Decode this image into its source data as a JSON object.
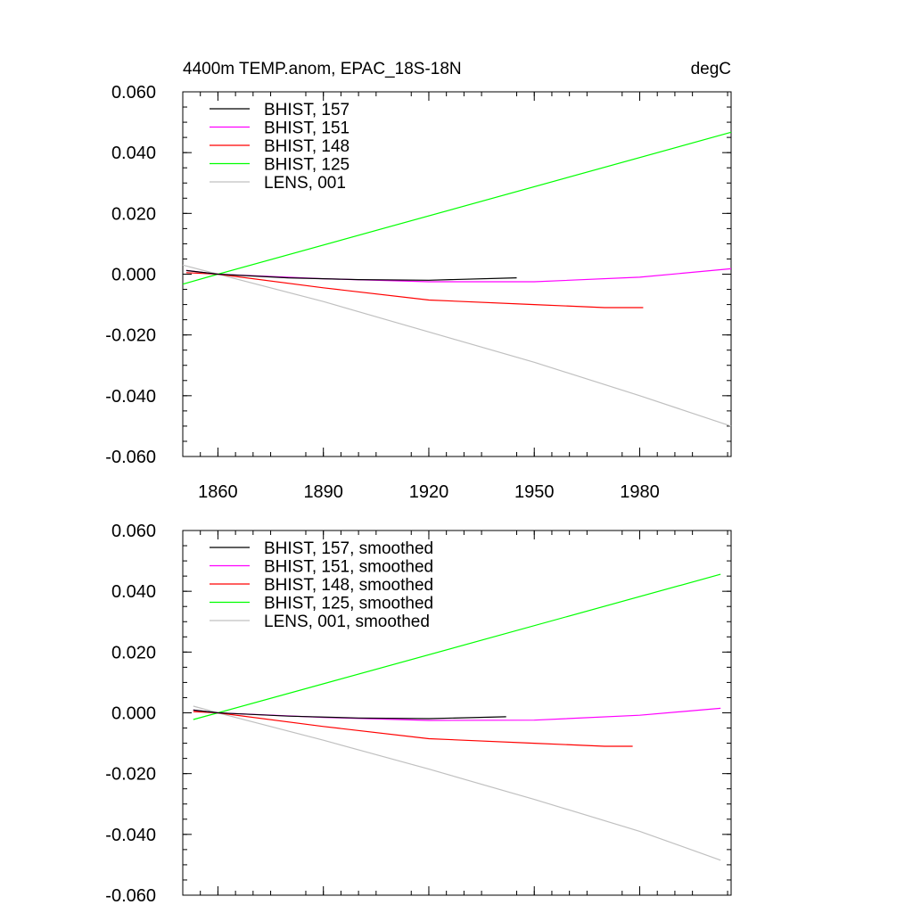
{
  "chart_data": [
    {
      "type": "line",
      "title": "4400m TEMP.anom, EPAC_18S-18N",
      "units": "degC",
      "xlabel": "",
      "ylabel": "",
      "xlim": [
        1850,
        2006
      ],
      "ylim": [
        -0.06,
        0.06
      ],
      "xticks": [
        1860,
        1890,
        1920,
        1950,
        1980
      ],
      "xtick_labels": [
        "1860",
        "1890",
        "1920",
        "1950",
        "1980"
      ],
      "yticks": [
        -0.06,
        -0.04,
        -0.02,
        0.0,
        0.02,
        0.04,
        0.06
      ],
      "ytick_labels": [
        "-0.060",
        "-0.040",
        "-0.020",
        "0.000",
        "0.020",
        "0.040",
        "0.060"
      ],
      "legend_position": "top-left",
      "series": [
        {
          "name": "BHIST, 157",
          "color": "#000000",
          "x": [
            1851,
            1860,
            1880,
            1900,
            1920,
            1945
          ],
          "y": [
            0.0012,
            0.0,
            -0.0012,
            -0.0018,
            -0.002,
            -0.0012
          ]
        },
        {
          "name": "BHIST, 151",
          "color": "#ff00ff",
          "x": [
            1851,
            1860,
            1890,
            1920,
            1950,
            1980,
            2006
          ],
          "y": [
            0.0012,
            0.0,
            -0.0015,
            -0.0025,
            -0.0025,
            -0.001,
            0.0018
          ]
        },
        {
          "name": "BHIST, 148",
          "color": "#ff0000",
          "x": [
            1851,
            1860,
            1890,
            1920,
            1950,
            1970,
            1981
          ],
          "y": [
            0.0005,
            0.0,
            -0.0045,
            -0.0085,
            -0.01,
            -0.011,
            -0.011
          ]
        },
        {
          "name": "BHIST, 125",
          "color": "#00ff00",
          "x": [
            1850,
            1860,
            2006
          ],
          "y": [
            -0.0033,
            0.0,
            0.0467
          ]
        },
        {
          "name": "LENS, 001",
          "color": "#c0c0c0",
          "x": [
            1850,
            1860,
            1890,
            1920,
            1950,
            1980,
            2006
          ],
          "y": [
            0.003,
            0.0,
            -0.009,
            -0.019,
            -0.029,
            -0.04,
            -0.05
          ]
        }
      ]
    },
    {
      "type": "line",
      "title": "",
      "xlabel": "",
      "ylabel": "",
      "xlim": [
        1850,
        2006
      ],
      "ylim": [
        -0.06,
        0.06
      ],
      "xticks": [
        1860,
        1890,
        1920,
        1950,
        1980
      ],
      "yticks": [
        -0.06,
        -0.04,
        -0.02,
        0.0,
        0.02,
        0.04,
        0.06
      ],
      "ytick_labels": [
        "-0.060",
        "-0.040",
        "-0.020",
        "0.000",
        "0.020",
        "0.040",
        "0.060"
      ],
      "legend_position": "top-left",
      "series": [
        {
          "name": "BHIST, 157, smoothed",
          "color": "#000000",
          "x": [
            1853,
            1860,
            1880,
            1900,
            1920,
            1942
          ],
          "y": [
            0.0009,
            0.0,
            -0.0011,
            -0.0017,
            -0.0019,
            -0.0013
          ]
        },
        {
          "name": "BHIST, 151, smoothed",
          "color": "#ff00ff",
          "x": [
            1853,
            1860,
            1890,
            1920,
            1950,
            1980,
            2003
          ],
          "y": [
            0.0009,
            0.0,
            -0.0015,
            -0.0025,
            -0.0024,
            -0.0008,
            0.0015
          ]
        },
        {
          "name": "BHIST, 148, smoothed",
          "color": "#ff0000",
          "x": [
            1853,
            1860,
            1890,
            1920,
            1950,
            1970,
            1978
          ],
          "y": [
            0.0004,
            0.0,
            -0.0045,
            -0.0085,
            -0.01,
            -0.011,
            -0.011
          ]
        },
        {
          "name": "BHIST, 125, smoothed",
          "color": "#00ff00",
          "x": [
            1853,
            1860,
            2003
          ],
          "y": [
            -0.0022,
            0.0,
            0.0456
          ]
        },
        {
          "name": "LENS, 001, smoothed",
          "color": "#c0c0c0",
          "x": [
            1853,
            1860,
            1890,
            1920,
            1950,
            1980,
            2003
          ],
          "y": [
            0.0022,
            0.0,
            -0.009,
            -0.0185,
            -0.0285,
            -0.039,
            -0.0485
          ]
        }
      ]
    }
  ]
}
